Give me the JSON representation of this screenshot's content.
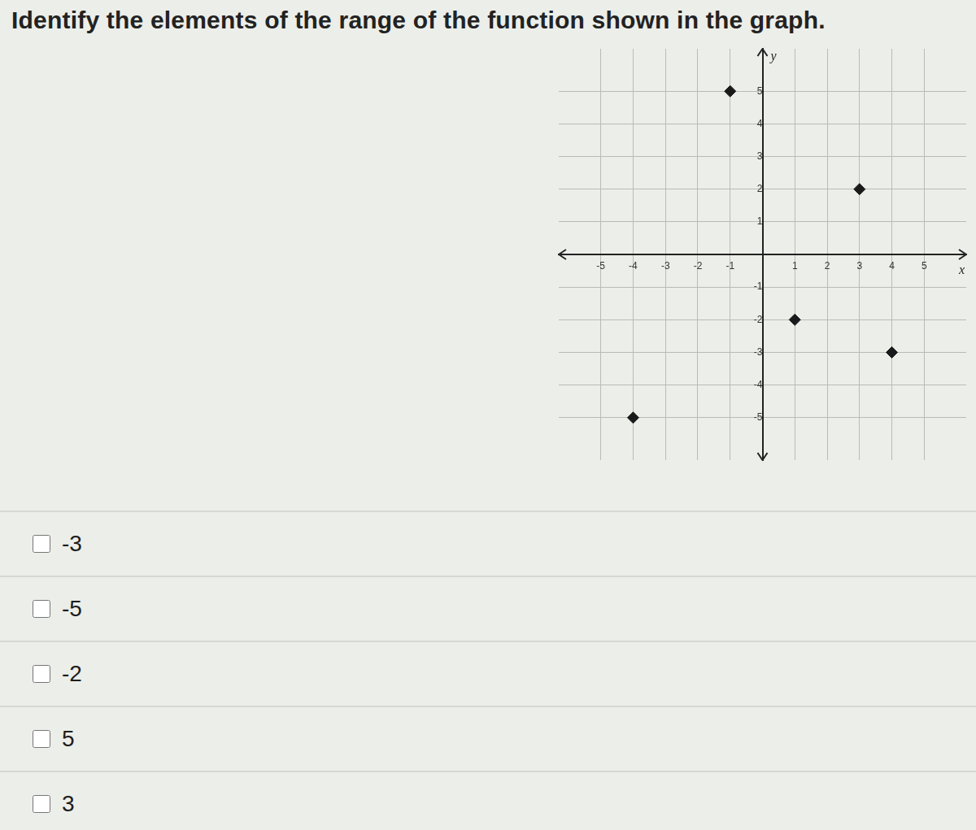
{
  "question": "Identify the elements of the range of the function shown in the graph.",
  "answer_choices": [
    "-3",
    "-5",
    "-2",
    "5",
    "3"
  ],
  "chart_data": {
    "type": "scatter",
    "x_label": "x",
    "y_label": "y",
    "x": [
      -1,
      3,
      1,
      4,
      -4
    ],
    "values": [
      5,
      2,
      -2,
      -3,
      -5
    ],
    "xlim": [
      -6.3,
      6.3
    ],
    "ylim": [
      -6.3,
      6.3
    ],
    "xticks": [
      -5,
      -4,
      -3,
      -2,
      -1,
      1,
      2,
      3,
      4,
      5
    ],
    "yticks": [
      -5,
      -4,
      -3,
      -2,
      -1,
      1,
      2,
      3,
      4,
      5
    ],
    "grid": true,
    "marker": "diamond",
    "color": "#1a1a1a"
  }
}
